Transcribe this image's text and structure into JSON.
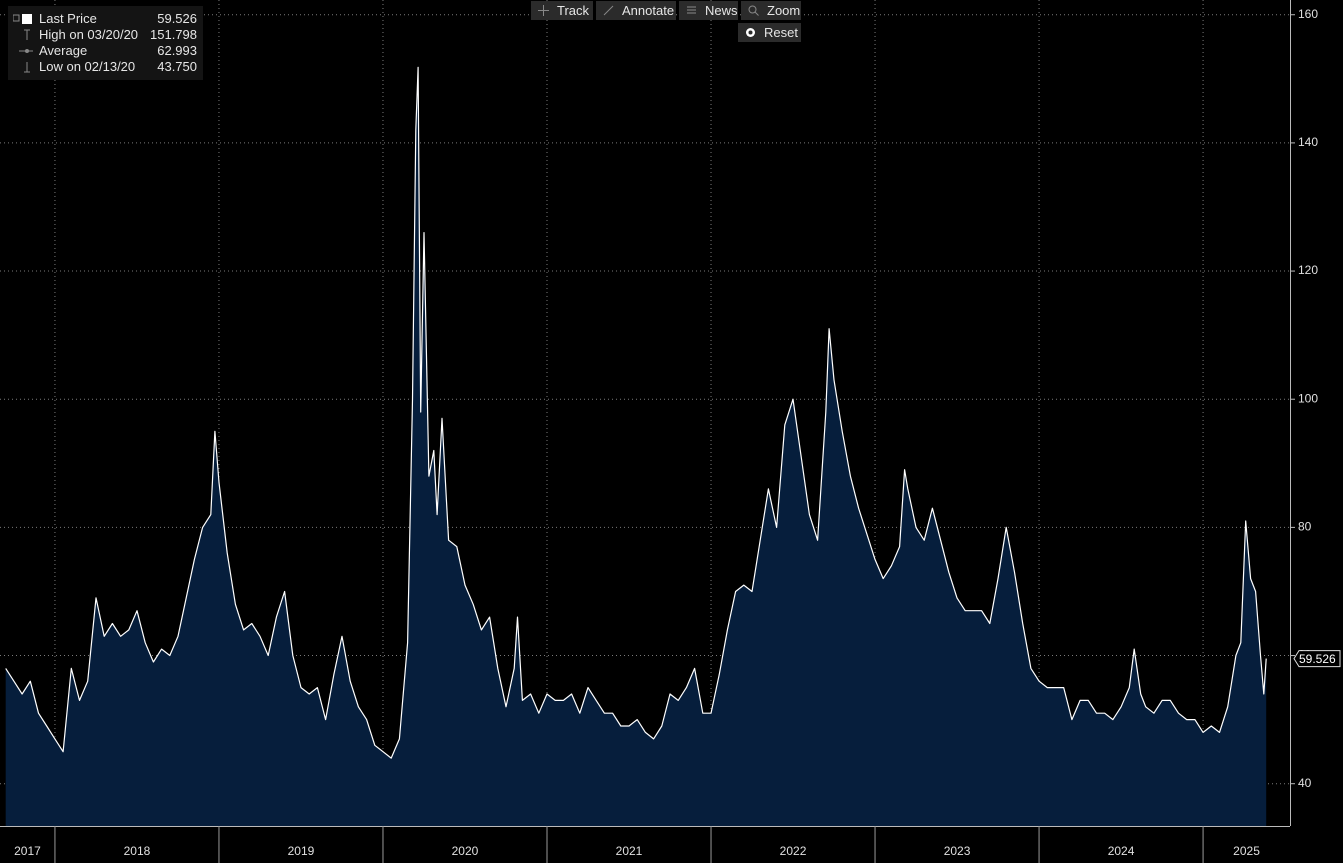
{
  "chart_data": {
    "type": "area",
    "series": [
      {
        "name": "Last Price",
        "color": "#ffffff",
        "fill": "#061e3c",
        "x": [
          2017.7,
          2017.75,
          2017.8,
          2017.85,
          2017.9,
          2017.95,
          2018,
          2018.05,
          2018.1,
          2018.15,
          2018.2,
          2018.25,
          2018.3,
          2018.35,
          2018.4,
          2018.45,
          2018.5,
          2018.55,
          2018.6,
          2018.65,
          2018.7,
          2018.75,
          2018.8,
          2018.85,
          2018.9,
          2018.95,
          2018.975,
          2019,
          2019.05,
          2019.1,
          2019.15,
          2019.2,
          2019.25,
          2019.3,
          2019.35,
          2019.4,
          2019.45,
          2019.5,
          2019.55,
          2019.6,
          2019.65,
          2019.7,
          2019.75,
          2019.8,
          2019.85,
          2019.9,
          2019.95,
          2020,
          2020.05,
          2020.1,
          2020.15,
          2020.18,
          2020.2,
          2020.214,
          2020.23,
          2020.25,
          2020.28,
          2020.31,
          2020.33,
          2020.36,
          2020.4,
          2020.45,
          2020.5,
          2020.55,
          2020.6,
          2020.65,
          2020.7,
          2020.75,
          2020.8,
          2020.82,
          2020.85,
          2020.9,
          2020.95,
          2021,
          2021.05,
          2021.1,
          2021.15,
          2021.2,
          2021.25,
          2021.3,
          2021.35,
          2021.4,
          2021.45,
          2021.5,
          2021.55,
          2021.6,
          2021.65,
          2021.7,
          2021.75,
          2021.8,
          2021.85,
          2021.9,
          2021.95,
          2022,
          2022.05,
          2022.1,
          2022.15,
          2022.2,
          2022.25,
          2022.3,
          2022.35,
          2022.4,
          2022.45,
          2022.5,
          2022.55,
          2022.6,
          2022.65,
          2022.7,
          2022.72,
          2022.75,
          2022.8,
          2022.85,
          2022.9,
          2022.95,
          2023,
          2023.05,
          2023.1,
          2023.15,
          2023.18,
          2023.2,
          2023.25,
          2023.3,
          2023.35,
          2023.4,
          2023.45,
          2023.5,
          2023.55,
          2023.6,
          2023.65,
          2023.7,
          2023.75,
          2023.8,
          2023.85,
          2023.9,
          2023.95,
          2024,
          2024.05,
          2024.1,
          2024.15,
          2024.2,
          2024.25,
          2024.3,
          2024.35,
          2024.4,
          2024.45,
          2024.5,
          2024.55,
          2024.58,
          2024.62,
          2024.65,
          2024.7,
          2024.75,
          2024.8,
          2024.85,
          2024.9,
          2024.95,
          2025,
          2025.05,
          2025.1,
          2025.15,
          2025.2,
          2025.23,
          2025.26,
          2025.29,
          2025.32,
          2025.35,
          2025.37,
          2025.385
        ],
        "values": [
          58,
          56,
          54,
          56,
          51,
          49,
          47,
          45,
          58,
          53,
          56,
          69,
          63,
          65,
          63,
          64,
          67,
          62,
          59,
          61,
          60,
          63,
          69,
          75,
          80,
          82,
          95,
          87,
          76,
          68,
          64,
          65,
          63,
          60,
          66,
          70,
          60,
          55,
          54,
          55,
          50,
          57,
          63,
          56,
          52,
          50,
          46,
          45,
          44,
          47,
          62,
          100,
          142,
          151.798,
          98,
          126,
          88,
          92,
          82,
          97,
          78,
          77,
          71,
          68,
          64,
          66,
          58,
          52,
          58,
          66,
          53,
          54,
          51,
          54,
          53,
          53,
          54,
          51,
          55,
          53,
          51,
          51,
          49,
          49,
          50,
          48,
          47,
          49,
          54,
          53,
          55,
          58,
          51,
          51,
          57,
          64,
          70,
          71,
          70,
          78,
          86,
          80,
          96,
          100,
          91,
          82,
          78,
          98,
          111,
          103,
          95,
          88,
          83,
          79,
          75,
          72,
          74,
          77,
          89,
          86,
          80,
          78,
          83,
          78,
          73,
          69,
          67,
          67,
          67,
          65,
          72,
          80,
          73,
          65,
          58,
          56,
          55,
          55,
          55,
          50,
          53,
          53,
          51,
          51,
          50,
          52,
          55,
          61,
          54,
          52,
          51,
          53,
          53,
          51,
          50,
          50,
          48,
          49,
          48,
          52,
          60,
          62,
          81,
          72,
          70,
          60,
          54,
          59.526
        ]
      }
    ],
    "stats": {
      "labels": [
        "High on 03/20/20",
        "Average",
        "Low on 02/13/20"
      ],
      "values": [
        151.798,
        62.993,
        43.75
      ],
      "value_labels": [
        "151.798",
        "62.993",
        "43.750"
      ]
    },
    "xlim": [
      2017.665,
      2025.53
    ],
    "xticks": [
      2017,
      2018,
      2019,
      2020,
      2021,
      2022,
      2023,
      2024,
      2025
    ],
    "ylim": [
      33.4,
      162.3
    ],
    "yticks": [
      40,
      60,
      80,
      100,
      120,
      140,
      160
    ],
    "grid": true
  },
  "toolbar": {
    "buttons": [
      "Track",
      "Annotate",
      "News",
      "Zoom"
    ],
    "reset": "Reset"
  }
}
